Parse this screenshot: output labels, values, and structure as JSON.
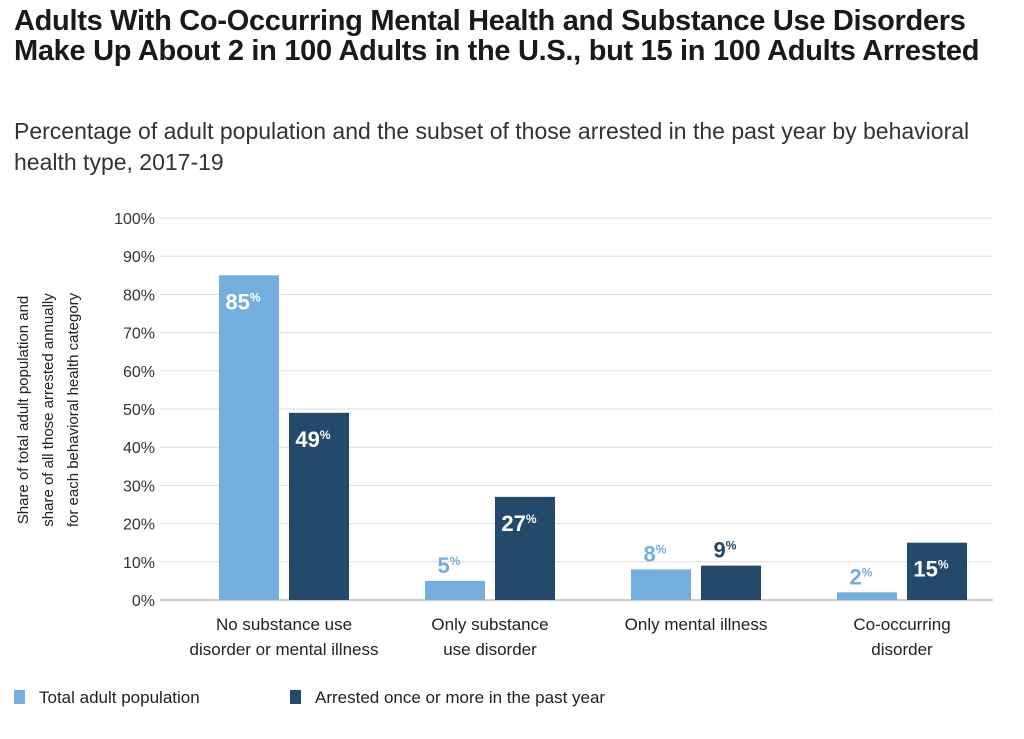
{
  "chart_data": {
    "type": "bar",
    "title": "Adults With Co-Occurring Mental Health and Substance Use Disorders Make Up About 2 in 100 Adults in the U.S., but 15 in 100 Adults Arrested",
    "subtitle": "Percentage of adult population and the subset of those arrested in the past year by behavioral health type, 2017-19",
    "ylabel": [
      "Share of total adult population and",
      "share of all those arrested annually",
      "for each behavioral health category"
    ],
    "xlabel": "",
    "ylim": [
      0,
      100
    ],
    "yticks": [
      "0%",
      "10%",
      "20%",
      "30%",
      "40%",
      "50%",
      "60%",
      "70%",
      "80%",
      "90%",
      "100%"
    ],
    "grid": true,
    "legend_position": "bottom-left",
    "categories": [
      [
        "No substance use",
        "disorder or mental illness"
      ],
      [
        "Only substance",
        "use disorder"
      ],
      [
        "Only mental illness"
      ],
      [
        "Co-occurring",
        "disorder"
      ]
    ],
    "series": [
      {
        "name": "Total adult population",
        "color": "#74aedf",
        "values": [
          85,
          5,
          8,
          2
        ]
      },
      {
        "name": "Arrested once or more in the past year",
        "color": "#234a6a",
        "values": [
          49,
          27,
          9,
          15
        ]
      }
    ],
    "unit_suffix": "%"
  }
}
